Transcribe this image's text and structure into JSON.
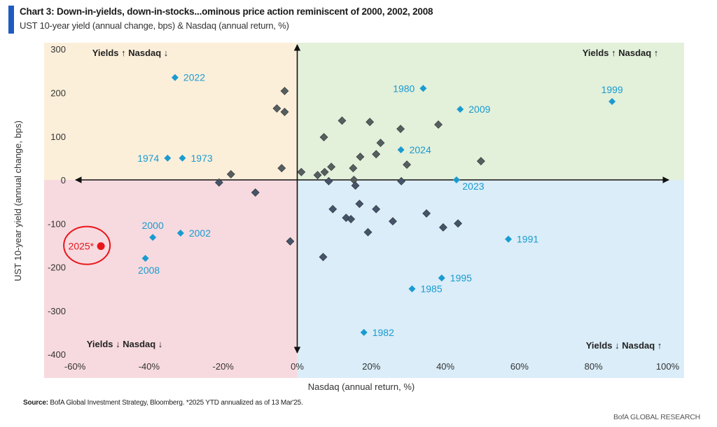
{
  "header": {
    "title": "Chart 3: Down-in-yields, down-in-stocks...ominous price action reminiscent of 2000, 2002, 2008",
    "subtitle": "UST 10-year yield (annual change, bps) & Nasdaq (annual return, %)"
  },
  "footer": {
    "source_label": "Source:",
    "source_text": " BofA Global Investment Strategy, Bloomberg. *2025 YTD annualized as of 13 Mar'25.",
    "brand": "BofA GLOBAL RESEARCH"
  },
  "colors": {
    "quadrant_top_left": "#fcefda",
    "quadrant_top_right": "#e3f0da",
    "quadrant_bottom_left": "#f7dadf",
    "quadrant_bottom_right": "#daedf8",
    "highlight_years": "#1a9bd0",
    "gray_points_up": "#565f5f",
    "gray_points_down": "#44546a",
    "current": "#e8161c",
    "accent_bar": "#1f5bbf"
  },
  "chart_data": {
    "type": "scatter",
    "title": "Chart 3: Down-in-yields, down-in-stocks...ominous price action reminiscent of 2000, 2002, 2008",
    "subtitle": "UST 10-year yield (annual change, bps) & Nasdaq (annual return, %)",
    "xlabel": "Nasdaq (annual return, %)",
    "ylabel": "UST 10-year yield (annual change, bps)",
    "xlim": [
      -60,
      100
    ],
    "ylim": [
      -400,
      300
    ],
    "xticks": [
      -60,
      -40,
      -20,
      0,
      20,
      40,
      60,
      80,
      100
    ],
    "xtick_labels": [
      "-60%",
      "-40%",
      "-20%",
      "0%",
      "20%",
      "40%",
      "60%",
      "80%",
      "100%"
    ],
    "yticks": [
      300,
      200,
      100,
      0,
      -100,
      -200,
      -300,
      -400
    ],
    "ytick_labels": [
      "300",
      "200",
      "100",
      "0",
      "-100",
      "-200",
      "-300",
      "-400"
    ],
    "grid": false,
    "quadrant_labels": {
      "top_left": "Yields ↑ Nasdaq ↓",
      "top_right": "Yields ↑ Nasdaq ↑",
      "bottom_left": "Yields ↓ Nasdaq ↓",
      "bottom_right": "Yields ↓ Nasdaq ↑"
    },
    "series": [
      {
        "name": "Highlighted years",
        "marker": "diamond",
        "points": [
          {
            "label": "2022",
            "x": -33,
            "y": 235,
            "label_pos": "right"
          },
          {
            "label": "1974",
            "x": -35,
            "y": 50,
            "label_pos": "left"
          },
          {
            "label": "1973",
            "x": -31,
            "y": 50,
            "label_pos": "right"
          },
          {
            "label": "1980",
            "x": 34,
            "y": 210,
            "label_pos": "left"
          },
          {
            "label": "2009",
            "x": 44,
            "y": 162,
            "label_pos": "right"
          },
          {
            "label": "1999",
            "x": 85,
            "y": 180,
            "label_pos": "top"
          },
          {
            "label": "2024",
            "x": 28,
            "y": 69,
            "label_pos": "right"
          },
          {
            "label": "2023",
            "x": 43,
            "y": 0,
            "label_pos": "bottom-right"
          },
          {
            "label": "1991",
            "x": 57,
            "y": -136,
            "label_pos": "right"
          },
          {
            "label": "1995",
            "x": 39,
            "y": -225,
            "label_pos": "right"
          },
          {
            "label": "1985",
            "x": 31,
            "y": -250,
            "label_pos": "right"
          },
          {
            "label": "1982",
            "x": 18,
            "y": -350,
            "label_pos": "right"
          },
          {
            "label": "2000",
            "x": -39,
            "y": -132,
            "label_pos": "top"
          },
          {
            "label": "2002",
            "x": -31.5,
            "y": -122,
            "label_pos": "right"
          },
          {
            "label": "2008",
            "x": -41,
            "y": -180,
            "label_pos": "bottom"
          }
        ]
      },
      {
        "name": "Other years",
        "marker": "diamond",
        "points": [
          {
            "x": -3.4,
            "y": 204
          },
          {
            "x": -5.5,
            "y": 164
          },
          {
            "x": -3.4,
            "y": 156
          },
          {
            "x": -4.2,
            "y": 27
          },
          {
            "x": -17.9,
            "y": 13
          },
          {
            "x": -21.1,
            "y": -6
          },
          {
            "x": -11.3,
            "y": -29
          },
          {
            "x": -1.9,
            "y": -141
          },
          {
            "x": 1.1,
            "y": 18
          },
          {
            "x": 7.2,
            "y": 98
          },
          {
            "x": 12.1,
            "y": 136
          },
          {
            "x": 19.6,
            "y": 133
          },
          {
            "x": 27.9,
            "y": 117
          },
          {
            "x": 22.5,
            "y": 85
          },
          {
            "x": 21.3,
            "y": 59
          },
          {
            "x": 17.0,
            "y": 53
          },
          {
            "x": 9.2,
            "y": 30
          },
          {
            "x": 15.1,
            "y": 27
          },
          {
            "x": 5.5,
            "y": 11
          },
          {
            "x": 7.4,
            "y": 18
          },
          {
            "x": 29.6,
            "y": 35
          },
          {
            "x": 38.1,
            "y": 127
          },
          {
            "x": 49.6,
            "y": 43
          },
          {
            "x": 8.5,
            "y": -3
          },
          {
            "x": 15.3,
            "y": 0
          },
          {
            "x": 15.7,
            "y": -13
          },
          {
            "x": 28.1,
            "y": -3
          },
          {
            "x": 9.6,
            "y": -67
          },
          {
            "x": 13.2,
            "y": -87
          },
          {
            "x": 14.5,
            "y": -90
          },
          {
            "x": 16.8,
            "y": -55
          },
          {
            "x": 21.3,
            "y": -67
          },
          {
            "x": 19.1,
            "y": -120
          },
          {
            "x": 25.8,
            "y": -95
          },
          {
            "x": 34.9,
            "y": -77
          },
          {
            "x": 39.4,
            "y": -109
          },
          {
            "x": 43.4,
            "y": -100
          },
          {
            "x": 7.0,
            "y": -177
          }
        ]
      },
      {
        "name": "2025 YTD annualized",
        "marker": "circle",
        "points": [
          {
            "label": "2025*",
            "x": -53,
            "y": -152,
            "label_pos": "left",
            "circled": true
          }
        ]
      }
    ]
  }
}
